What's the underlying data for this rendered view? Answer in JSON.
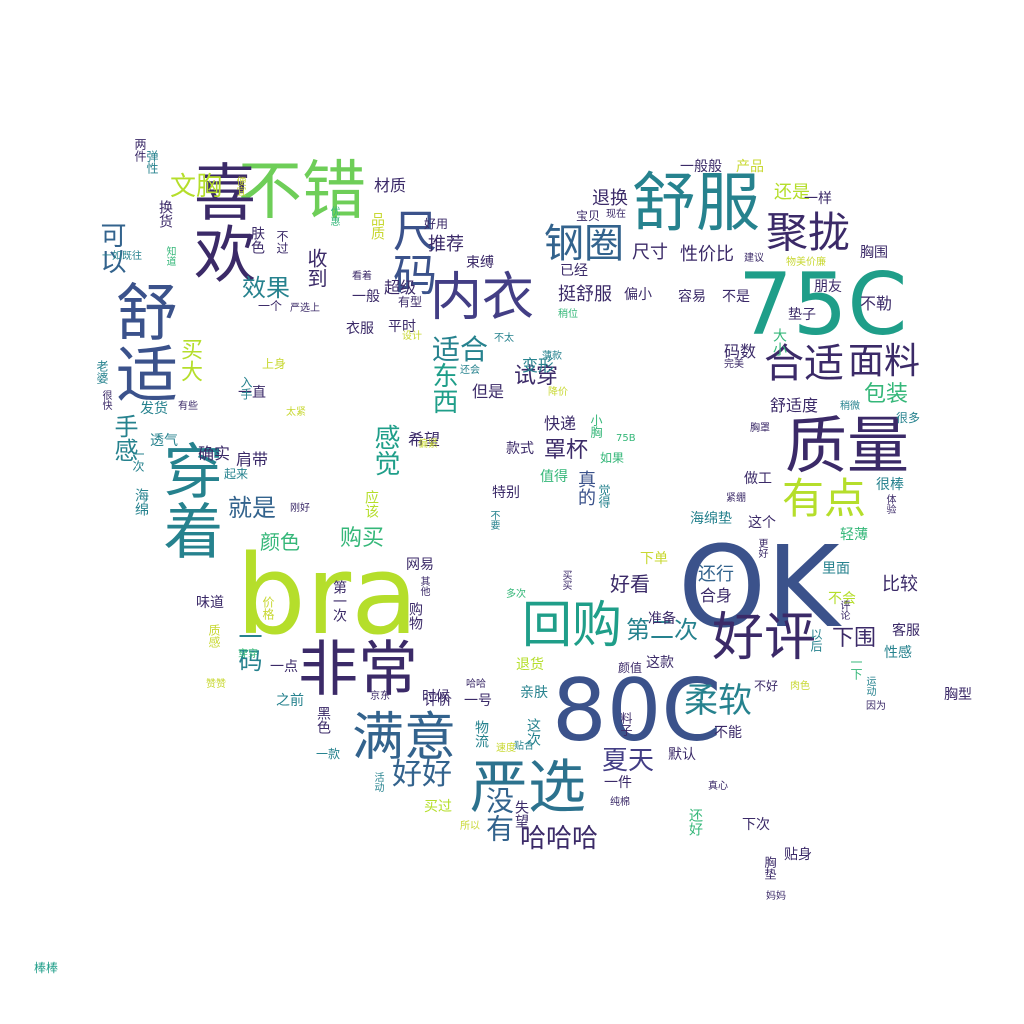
{
  "colors": {
    "deep_indigo": "#3b2a68",
    "indigo": "#433e85",
    "slate_blue": "#3b528b",
    "steel_blue": "#33638d",
    "teal_blue": "#2c728e",
    "teal": "#26828e",
    "sea_green": "#1f9e89",
    "green": "#35b779",
    "light_green": "#6ece58",
    "lime": "#b5de2b",
    "yellow": "#c8d832"
  },
  "words": [
    {
      "text": "OK",
      "color": "#3b528b"
    },
    {
      "text": "bra",
      "color": "#b5de2b"
    },
    {
      "text": "80C",
      "color": "#3b528b"
    },
    {
      "text": "75C",
      "color": "#1f9e89"
    },
    {
      "text": "不错",
      "color": "#6ece58"
    },
    {
      "text": "舒服",
      "color": "#26828e"
    },
    {
      "text": "非常",
      "color": "#3b2a68"
    },
    {
      "text": "严选",
      "color": "#2c728e"
    },
    {
      "text": "喜欢",
      "color": "#3b2a68"
    },
    {
      "text": "舒适",
      "color": "#3b528b"
    },
    {
      "text": "内衣",
      "color": "#433e85"
    },
    {
      "text": "质量",
      "color": "#3b2a68"
    },
    {
      "text": "回购",
      "color": "#1f9e89"
    },
    {
      "text": "穿着",
      "color": "#26828e"
    },
    {
      "text": "满意",
      "color": "#33638d"
    },
    {
      "text": "好评",
      "color": "#3b2a68"
    },
    {
      "text": "有点",
      "color": "#b5de2b"
    },
    {
      "text": "聚拢",
      "color": "#3b2a68"
    },
    {
      "text": "钢圈",
      "color": "#33638d"
    },
    {
      "text": "合适",
      "color": "#3b2a68"
    },
    {
      "text": "尺码",
      "color": "#3b528b"
    },
    {
      "text": "柔软",
      "color": "#26828e"
    },
    {
      "text": "面料",
      "color": "#3b2a68"
    },
    {
      "text": "文胸",
      "color": "#b5de2b"
    },
    {
      "text": "好好",
      "color": "#33638d"
    },
    {
      "text": "哈哈哈",
      "color": "#3b2a68"
    },
    {
      "text": "没有",
      "color": "#33638d"
    },
    {
      "text": "适合",
      "color": "#26828e"
    },
    {
      "text": "可以",
      "color": "#33638d"
    },
    {
      "text": "效果",
      "color": "#26828e"
    },
    {
      "text": "夏天",
      "color": "#433e85"
    },
    {
      "text": "包装",
      "color": "#35b779"
    },
    {
      "text": "下围",
      "color": "#3b2a68"
    },
    {
      "text": "第二次",
      "color": "#26828e"
    },
    {
      "text": "一码",
      "color": "#26828e"
    },
    {
      "text": "东西",
      "color": "#1f9e89"
    },
    {
      "text": "感觉",
      "color": "#1f9e89"
    },
    {
      "text": "购买",
      "color": "#35b779"
    },
    {
      "text": "就是",
      "color": "#33638d"
    },
    {
      "text": "手感",
      "color": "#26828e"
    },
    {
      "text": "收到",
      "color": "#3b2a68"
    },
    {
      "text": "试穿",
      "color": "#3b2a68"
    },
    {
      "text": "罩杯",
      "color": "#3b2a68"
    },
    {
      "text": "好看",
      "color": "#3b2a68"
    },
    {
      "text": "颜色",
      "color": "#35b779"
    },
    {
      "text": "推荐",
      "color": "#3b2a68"
    },
    {
      "text": "买大",
      "color": "#b5de2b"
    },
    {
      "text": "退换",
      "color": "#3b2a68"
    },
    {
      "text": "尺寸",
      "color": "#3b2a68"
    },
    {
      "text": "性价比",
      "color": "#3b2a68"
    },
    {
      "text": "还是",
      "color": "#b5de2b"
    },
    {
      "text": "挺舒服",
      "color": "#3b2a68"
    },
    {
      "text": "变形",
      "color": "#26828e"
    },
    {
      "text": "但是",
      "color": "#3b2a68"
    },
    {
      "text": "快递",
      "color": "#3b2a68"
    },
    {
      "text": "真的",
      "color": "#3b528b"
    },
    {
      "text": "希望",
      "color": "#3b2a68"
    },
    {
      "text": "确实",
      "color": "#3b2a68"
    },
    {
      "text": "肩带",
      "color": "#3b2a68"
    },
    {
      "text": "比较",
      "color": "#3b2a68"
    },
    {
      "text": "还行",
      "color": "#33638d"
    },
    {
      "text": "合身",
      "color": "#3b2a68"
    },
    {
      "text": "舒适度",
      "color": "#3b2a68"
    },
    {
      "text": "码数",
      "color": "#3b2a68"
    },
    {
      "text": "材质",
      "color": "#3b2a68"
    },
    {
      "text": "肤色",
      "color": "#3b2a68"
    },
    {
      "text": "一般",
      "color": "#3b2a68"
    },
    {
      "text": "一般般",
      "color": "#3b2a68"
    },
    {
      "text": "产品",
      "color": "#c8d832"
    },
    {
      "text": "一样",
      "color": "#3b2a68"
    },
    {
      "text": "胸围",
      "color": "#3b2a68"
    },
    {
      "text": "不勒",
      "color": "#3b2a68"
    },
    {
      "text": "朋友",
      "color": "#3b2a68"
    },
    {
      "text": "垫子",
      "color": "#3b2a68"
    },
    {
      "text": "大小",
      "color": "#35b779"
    },
    {
      "text": "不是",
      "color": "#3b2a68"
    },
    {
      "text": "容易",
      "color": "#3b2a68"
    },
    {
      "text": "偏小",
      "color": "#3b2a68"
    },
    {
      "text": "超级",
      "color": "#3b2a68"
    },
    {
      "text": "束缚",
      "color": "#3b2a68"
    },
    {
      "text": "已经",
      "color": "#3b2a68"
    },
    {
      "text": "宝贝",
      "color": "#3b2a68"
    },
    {
      "text": "现在",
      "color": "#3b2a68"
    },
    {
      "text": "好用",
      "color": "#3b2a68"
    },
    {
      "text": "品质",
      "color": "#c8d832"
    },
    {
      "text": "不过",
      "color": "#3b2a68"
    },
    {
      "text": "平时",
      "color": "#3b2a68"
    },
    {
      "text": "衣服",
      "color": "#3b2a68"
    },
    {
      "text": "海绵垫",
      "color": "#26828e"
    },
    {
      "text": "这个",
      "color": "#3b2a68"
    },
    {
      "text": "轻薄",
      "color": "#35b779"
    },
    {
      "text": "很棒",
      "color": "#26828e"
    },
    {
      "text": "做工",
      "color": "#3b2a68"
    },
    {
      "text": "里面",
      "color": "#26828e"
    },
    {
      "text": "不会",
      "color": "#b5de2b"
    },
    {
      "text": "客服",
      "color": "#3b2a68"
    },
    {
      "text": "性感",
      "color": "#26828e"
    },
    {
      "text": "以后",
      "color": "#26828e"
    },
    {
      "text": "一下",
      "color": "#35b779"
    },
    {
      "text": "不好",
      "color": "#3b2a68"
    },
    {
      "text": "不能",
      "color": "#3b2a68"
    },
    {
      "text": "这款",
      "color": "#3b2a68"
    },
    {
      "text": "准备",
      "color": "#3b2a68"
    },
    {
      "text": "下单",
      "color": "#c8d832"
    },
    {
      "text": "颜值",
      "color": "#3b2a68"
    },
    {
      "text": "料子",
      "color": "#3b2a68"
    },
    {
      "text": "亲肤",
      "color": "#26828e"
    },
    {
      "text": "退货",
      "color": "#b5de2b"
    },
    {
      "text": "特别",
      "color": "#3b2a68"
    },
    {
      "text": "值得",
      "color": "#35b779"
    },
    {
      "text": "款式",
      "color": "#3b2a68"
    },
    {
      "text": "网易",
      "color": "#3b2a68"
    },
    {
      "text": "购物",
      "color": "#3b2a68"
    },
    {
      "text": "味道",
      "color": "#3b2a68"
    },
    {
      "text": "评价",
      "color": "#3b2a68"
    },
    {
      "text": "时候",
      "color": "#3b2a68"
    },
    {
      "text": "一号",
      "color": "#3b2a68"
    },
    {
      "text": "之前",
      "color": "#26828e"
    },
    {
      "text": "一点",
      "color": "#3b2a68"
    },
    {
      "text": "黑色",
      "color": "#3b2a68"
    },
    {
      "text": "一款",
      "color": "#26828e"
    },
    {
      "text": "物流",
      "color": "#26828e"
    },
    {
      "text": "这次",
      "color": "#26828e"
    },
    {
      "text": "一件",
      "color": "#3b2a68"
    },
    {
      "text": "默认",
      "color": "#3b2a68"
    },
    {
      "text": "买过",
      "color": "#b5de2b"
    },
    {
      "text": "失望",
      "color": "#3b2a68"
    },
    {
      "text": "还好",
      "color": "#35b779"
    },
    {
      "text": "下次",
      "color": "#3b2a68"
    },
    {
      "text": "贴身",
      "color": "#3b2a68"
    },
    {
      "text": "胸垫",
      "color": "#3b2a68"
    },
    {
      "text": "妈妈",
      "color": "#3b2a68"
    },
    {
      "text": "透气",
      "color": "#26828e"
    },
    {
      "text": "一次",
      "color": "#26828e"
    },
    {
      "text": "海绵",
      "color": "#26828e"
    },
    {
      "text": "起来",
      "color": "#26828e"
    },
    {
      "text": "发货",
      "color": "#26828e"
    },
    {
      "text": "老婆",
      "color": "#26828e"
    },
    {
      "text": "换货",
      "color": "#3b2a68"
    },
    {
      "text": "两件",
      "color": "#3b2a68"
    },
    {
      "text": "弹性",
      "color": "#26828e"
    },
    {
      "text": "一直",
      "color": "#3b2a68"
    },
    {
      "text": "入手",
      "color": "#26828e"
    },
    {
      "text": "上身",
      "color": "#c8d832"
    },
    {
      "text": "一个",
      "color": "#3b2a68"
    },
    {
      "text": "质感",
      "color": "#c8d832"
    },
    {
      "text": "价格",
      "color": "#c8d832"
    },
    {
      "text": "第一次",
      "color": "#3b2a68"
    },
    {
      "text": "应该",
      "color": "#b5de2b"
    },
    {
      "text": "胸型",
      "color": "#3b2a68"
    },
    {
      "text": "棒棒",
      "color": "#1f9e89"
    },
    {
      "text": "小胸",
      "color": "#35b779"
    },
    {
      "text": "75B",
      "color": "#35b779"
    },
    {
      "text": "如果",
      "color": "#35b779"
    },
    {
      "text": "觉得",
      "color": "#26828e"
    },
    {
      "text": "不要",
      "color": "#26828e"
    },
    {
      "text": "紧绷",
      "color": "#3b2a68"
    },
    {
      "text": "胸罩",
      "color": "#3b2a68"
    },
    {
      "text": "很多",
      "color": "#26828e"
    },
    {
      "text": "稍微",
      "color": "#26828e"
    },
    {
      "text": "完美",
      "color": "#3b2a68"
    },
    {
      "text": "建议",
      "color": "#3b2a68"
    },
    {
      "text": "物美价廉",
      "color": "#c8d832"
    },
    {
      "text": "看着",
      "color": "#3b2a68"
    },
    {
      "text": "优惠",
      "color": "#35b779"
    },
    {
      "text": "有型",
      "color": "#3b2a68"
    },
    {
      "text": "设计",
      "color": "#c8d832"
    },
    {
      "text": "不太",
      "color": "#26828e"
    },
    {
      "text": "还会",
      "color": "#26828e"
    },
    {
      "text": "薄款",
      "color": "#26828e"
    },
    {
      "text": "降价",
      "color": "#c8d832"
    },
    {
      "text": "稍位",
      "color": "#35b779"
    },
    {
      "text": "很快",
      "color": "#3b2a68"
    },
    {
      "text": "有些",
      "color": "#3b2a68"
    },
    {
      "text": "太紧",
      "color": "#c8d832"
    },
    {
      "text": "便宜",
      "color": "#c8d832"
    },
    {
      "text": "知道",
      "color": "#35b779"
    },
    {
      "text": "一如既往",
      "color": "#26828e"
    },
    {
      "text": "严选上",
      "color": "#3b2a68"
    },
    {
      "text": "刚好",
      "color": "#3b2a68"
    },
    {
      "text": "其他",
      "color": "#3b2a68"
    },
    {
      "text": "多次",
      "color": "#35b779"
    },
    {
      "text": "买买",
      "color": "#3b2a68"
    },
    {
      "text": "哈哈",
      "color": "#3b2a68"
    },
    {
      "text": "京东",
      "color": "#3b2a68"
    },
    {
      "text": "贴合",
      "color": "#26828e"
    },
    {
      "text": "速度",
      "color": "#c8d832"
    },
    {
      "text": "活动",
      "color": "#26828e"
    },
    {
      "text": "所以",
      "color": "#c8d832"
    },
    {
      "text": "纯棉",
      "color": "#3b2a68"
    },
    {
      "text": "真心",
      "color": "#3b2a68"
    },
    {
      "text": "赞赞",
      "color": "#c8d832"
    },
    {
      "text": "穿穿",
      "color": "#35b779"
    },
    {
      "text": "肉色",
      "color": "#c8d832"
    },
    {
      "text": "运动",
      "color": "#26828e"
    },
    {
      "text": "因为",
      "color": "#3b2a68"
    },
    {
      "text": "偏紧",
      "color": "#c8d832"
    },
    {
      "text": "更好",
      "color": "#3b2a68"
    },
    {
      "text": "评论",
      "color": "#3b2a68"
    },
    {
      "text": "体验",
      "color": "#3b2a68"
    }
  ]
}
